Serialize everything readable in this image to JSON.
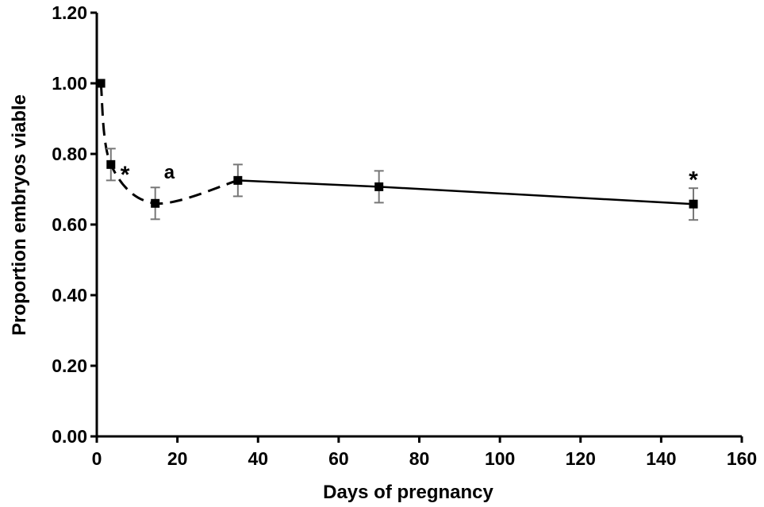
{
  "chart_data": {
    "type": "line",
    "title": "",
    "xlabel": "Days of pregnancy",
    "ylabel": "Proportion embryos viable",
    "xlim": [
      0,
      160
    ],
    "ylim": [
      0,
      1.2
    ],
    "x_ticks": [
      "0",
      "20",
      "40",
      "60",
      "80",
      "100",
      "120",
      "140",
      "160"
    ],
    "y_ticks": [
      "0.00",
      "0.20",
      "0.40",
      "0.60",
      "0.80",
      "1.00",
      "1.20"
    ],
    "grid": false,
    "legend": "none",
    "series": [
      {
        "points": [
          {
            "x": 1,
            "y": 1.0,
            "err": 0
          },
          {
            "x": 3.5,
            "y": 0.77,
            "err": 0.045
          },
          {
            "x": 14.5,
            "y": 0.66,
            "err": 0.045
          },
          {
            "x": 35,
            "y": 0.725,
            "err": 0.045
          },
          {
            "x": 70,
            "y": 0.707,
            "err": 0.045
          },
          {
            "x": 148,
            "y": 0.658,
            "err": 0.045
          }
        ]
      }
    ],
    "annotations": [
      {
        "text": "*",
        "x": 7,
        "y": 0.76
      },
      {
        "text": "a",
        "x": 18,
        "y": 0.73
      },
      {
        "text": "*",
        "x": 148,
        "y": 0.745
      }
    ]
  }
}
